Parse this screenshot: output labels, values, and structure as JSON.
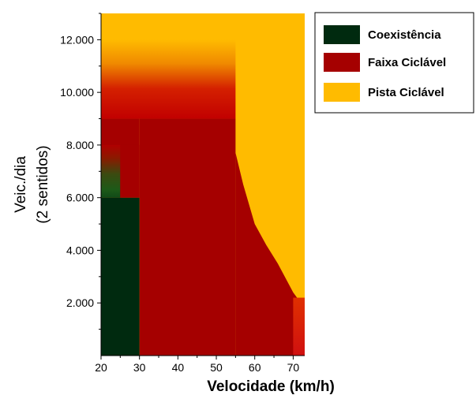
{
  "chart_data": {
    "type": "heatmap",
    "xlabel": "Velocidade (km/h)",
    "ylabel": [
      "Veic./dia",
      "(2 sentidos)"
    ],
    "xlim": [
      20,
      73
    ],
    "ylim": [
      0,
      13000
    ],
    "x_ticks": [
      20,
      30,
      40,
      50,
      60,
      70
    ],
    "y_ticks": [
      2000,
      4000,
      6000,
      8000,
      10000,
      12000
    ],
    "x_tick_labels": [
      "20",
      "30",
      "40",
      "50",
      "60",
      "70"
    ],
    "y_tick_labels": [
      "2.000",
      "4.000",
      "6.000",
      "8.000",
      "10.000",
      "12.000"
    ],
    "legend_position": "top-right",
    "legend": [
      {
        "label": "Coexistência",
        "color": "#002a0f"
      },
      {
        "label": "Faixa Ciclável",
        "color": "#a50000"
      },
      {
        "label": "Pista Ciclável",
        "color": "#ffbb00"
      }
    ],
    "regions": [
      {
        "category": "Coexistência",
        "x_range": [
          20,
          30
        ],
        "y_range": [
          0,
          6000
        ]
      },
      {
        "category": "Faixa Ciclável",
        "x_range": [
          20,
          30
        ],
        "y_range": [
          8000,
          9000
        ]
      },
      {
        "category": "Faixa Ciclável",
        "x_range": [
          30,
          55
        ],
        "y_range": [
          0,
          9000
        ]
      },
      {
        "category": "Faixa Ciclável",
        "x_range": [
          55,
          73
        ],
        "y_range": [
          0,
          2000
        ]
      },
      {
        "category": "Pista Ciclável",
        "x_range": [
          20,
          73
        ],
        "y_range": [
          9000,
          13000
        ]
      },
      {
        "category": "Pista Ciclável",
        "x_range": [
          55,
          73
        ],
        "y_range": [
          2000,
          9000
        ]
      }
    ],
    "boundary_pista_faixa": [
      [
        55,
        9000
      ],
      [
        55,
        7700
      ],
      [
        57,
        6500
      ],
      [
        60,
        5000
      ],
      [
        63,
        4200
      ],
      [
        66,
        3500
      ],
      [
        70,
        2400
      ],
      [
        73,
        1800
      ]
    ],
    "transitions": [
      {
        "between": [
          "Coexistência",
          "Faixa Ciclável"
        ],
        "x_range": [
          20,
          30
        ],
        "y_range": [
          6000,
          8000
        ]
      },
      {
        "between": [
          "Faixa Ciclável",
          "Pista Ciclável"
        ],
        "x_range": [
          20,
          55
        ],
        "y_range": [
          9000,
          12000
        ]
      }
    ]
  }
}
